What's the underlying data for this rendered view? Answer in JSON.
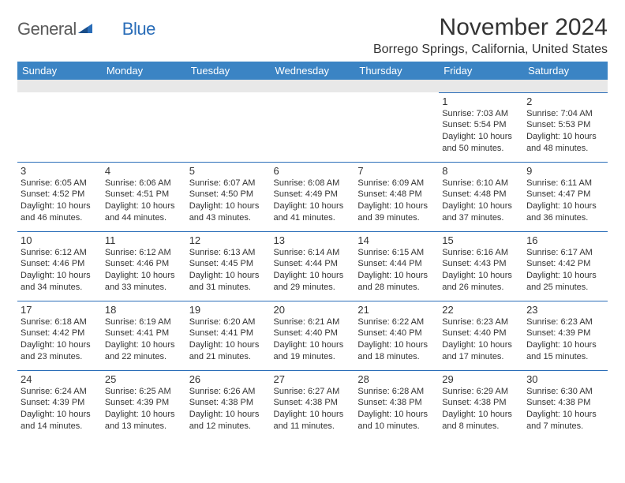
{
  "logo": {
    "text1": "General",
    "text2": "Blue"
  },
  "title": "November 2024",
  "location": "Borrego Springs, California, United States",
  "colors": {
    "header_bg": "#3b84c4",
    "header_text": "#ffffff",
    "border": "#2a6db8",
    "spacer_bg": "#e8e8e8",
    "body_text": "#333333",
    "logo_gray": "#5a5a5a",
    "logo_blue": "#2a6db8",
    "page_bg": "#ffffff"
  },
  "weekdays": [
    "Sunday",
    "Monday",
    "Tuesday",
    "Wednesday",
    "Thursday",
    "Friday",
    "Saturday"
  ],
  "weeks": [
    [
      null,
      null,
      null,
      null,
      null,
      {
        "n": "1",
        "sr": "7:03 AM",
        "ss": "5:54 PM",
        "dl": "10 hours and 50 minutes."
      },
      {
        "n": "2",
        "sr": "7:04 AM",
        "ss": "5:53 PM",
        "dl": "10 hours and 48 minutes."
      }
    ],
    [
      {
        "n": "3",
        "sr": "6:05 AM",
        "ss": "4:52 PM",
        "dl": "10 hours and 46 minutes."
      },
      {
        "n": "4",
        "sr": "6:06 AM",
        "ss": "4:51 PM",
        "dl": "10 hours and 44 minutes."
      },
      {
        "n": "5",
        "sr": "6:07 AM",
        "ss": "4:50 PM",
        "dl": "10 hours and 43 minutes."
      },
      {
        "n": "6",
        "sr": "6:08 AM",
        "ss": "4:49 PM",
        "dl": "10 hours and 41 minutes."
      },
      {
        "n": "7",
        "sr": "6:09 AM",
        "ss": "4:48 PM",
        "dl": "10 hours and 39 minutes."
      },
      {
        "n": "8",
        "sr": "6:10 AM",
        "ss": "4:48 PM",
        "dl": "10 hours and 37 minutes."
      },
      {
        "n": "9",
        "sr": "6:11 AM",
        "ss": "4:47 PM",
        "dl": "10 hours and 36 minutes."
      }
    ],
    [
      {
        "n": "10",
        "sr": "6:12 AM",
        "ss": "4:46 PM",
        "dl": "10 hours and 34 minutes."
      },
      {
        "n": "11",
        "sr": "6:12 AM",
        "ss": "4:46 PM",
        "dl": "10 hours and 33 minutes."
      },
      {
        "n": "12",
        "sr": "6:13 AM",
        "ss": "4:45 PM",
        "dl": "10 hours and 31 minutes."
      },
      {
        "n": "13",
        "sr": "6:14 AM",
        "ss": "4:44 PM",
        "dl": "10 hours and 29 minutes."
      },
      {
        "n": "14",
        "sr": "6:15 AM",
        "ss": "4:44 PM",
        "dl": "10 hours and 28 minutes."
      },
      {
        "n": "15",
        "sr": "6:16 AM",
        "ss": "4:43 PM",
        "dl": "10 hours and 26 minutes."
      },
      {
        "n": "16",
        "sr": "6:17 AM",
        "ss": "4:42 PM",
        "dl": "10 hours and 25 minutes."
      }
    ],
    [
      {
        "n": "17",
        "sr": "6:18 AM",
        "ss": "4:42 PM",
        "dl": "10 hours and 23 minutes."
      },
      {
        "n": "18",
        "sr": "6:19 AM",
        "ss": "4:41 PM",
        "dl": "10 hours and 22 minutes."
      },
      {
        "n": "19",
        "sr": "6:20 AM",
        "ss": "4:41 PM",
        "dl": "10 hours and 21 minutes."
      },
      {
        "n": "20",
        "sr": "6:21 AM",
        "ss": "4:40 PM",
        "dl": "10 hours and 19 minutes."
      },
      {
        "n": "21",
        "sr": "6:22 AM",
        "ss": "4:40 PM",
        "dl": "10 hours and 18 minutes."
      },
      {
        "n": "22",
        "sr": "6:23 AM",
        "ss": "4:40 PM",
        "dl": "10 hours and 17 minutes."
      },
      {
        "n": "23",
        "sr": "6:23 AM",
        "ss": "4:39 PM",
        "dl": "10 hours and 15 minutes."
      }
    ],
    [
      {
        "n": "24",
        "sr": "6:24 AM",
        "ss": "4:39 PM",
        "dl": "10 hours and 14 minutes."
      },
      {
        "n": "25",
        "sr": "6:25 AM",
        "ss": "4:39 PM",
        "dl": "10 hours and 13 minutes."
      },
      {
        "n": "26",
        "sr": "6:26 AM",
        "ss": "4:38 PM",
        "dl": "10 hours and 12 minutes."
      },
      {
        "n": "27",
        "sr": "6:27 AM",
        "ss": "4:38 PM",
        "dl": "10 hours and 11 minutes."
      },
      {
        "n": "28",
        "sr": "6:28 AM",
        "ss": "4:38 PM",
        "dl": "10 hours and 10 minutes."
      },
      {
        "n": "29",
        "sr": "6:29 AM",
        "ss": "4:38 PM",
        "dl": "10 hours and 8 minutes."
      },
      {
        "n": "30",
        "sr": "6:30 AM",
        "ss": "4:38 PM",
        "dl": "10 hours and 7 minutes."
      }
    ]
  ],
  "labels": {
    "sunrise": "Sunrise:",
    "sunset": "Sunset:",
    "daylight": "Daylight:"
  }
}
